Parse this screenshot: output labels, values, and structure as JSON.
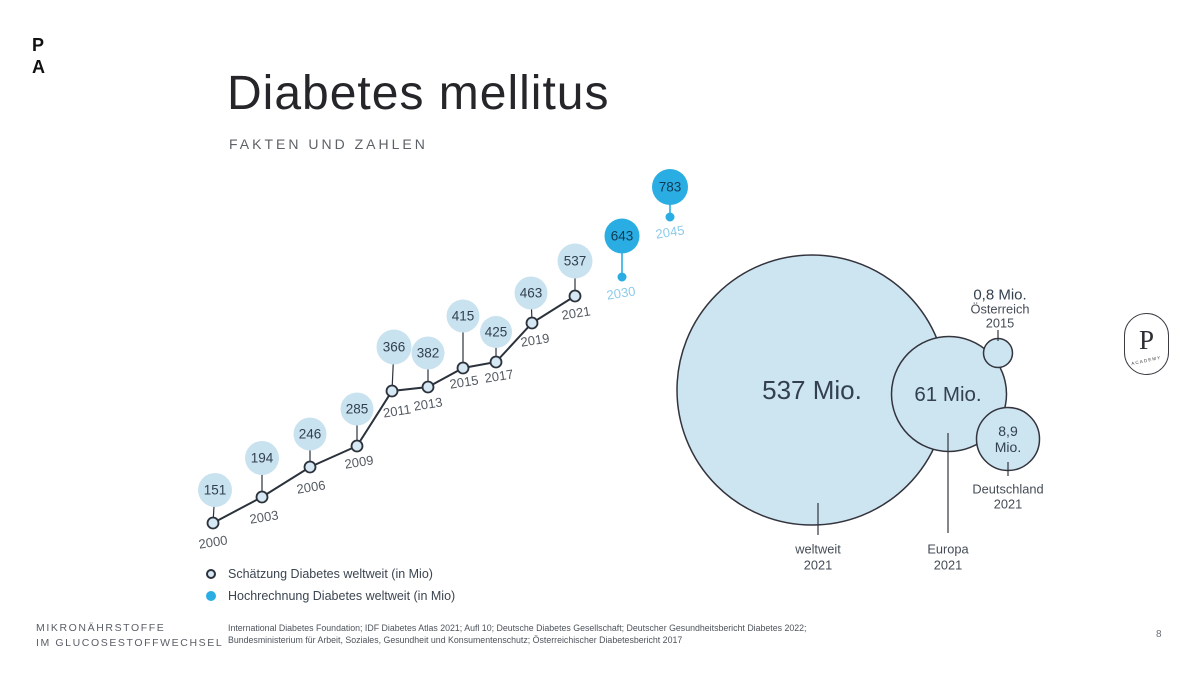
{
  "slide": {
    "logo_monogram": {
      "line1": "P",
      "line2": "A"
    },
    "title": "Diabetes mellitus",
    "subtitle": "FAKTEN UND ZAHLEN",
    "page_number": "8",
    "footer_left": {
      "line1": "MIKRONÄHRSTOFFE",
      "line2": "IM GLUCOSESTOFFWECHSEL"
    },
    "sources": {
      "line1": "International Diabetes Foundation; IDF Diabetes Atlas 2021; Aufl 10; Deutsche Diabetes Gesellschaft; Deutscher Gesundheitsbericht Diabetes 2022;",
      "line2": "Bundesministerium für Arbeit, Soziales, Gesundheit und Konsumentenschutz; Österreichischer Diabetesbericht 2017"
    },
    "badge": {
      "letter": "P",
      "subtext": "ACADEMY"
    }
  },
  "colors": {
    "accent_blue": "#29ade2",
    "bubble_light": "#c9e2ef",
    "large_circle_fill": "#cde5f1",
    "line_dark": "#2b323c",
    "circle_stroke": "#33343d",
    "number_dark": "#32404f",
    "number_navy": "#123a57",
    "year_gray": "#545a62",
    "year_light_blue": "#8dcbea",
    "label_gray": "#454c56"
  },
  "chart_data": [
    {
      "type": "line",
      "title": "",
      "xlabel": "",
      "ylabel": "",
      "series": [
        {
          "name": "Schätzung Diabetes weltweit (in Mio)",
          "x": [
            2000,
            2003,
            2006,
            2009,
            2011,
            2013,
            2015,
            2017,
            2019,
            2021
          ],
          "values": [
            151,
            194,
            246,
            285,
            366,
            382,
            415,
            425,
            463,
            537
          ]
        },
        {
          "name": "Hochrechnung Diabetes weltweit (in Mio)",
          "x": [
            2030,
            2045
          ],
          "values": [
            643,
            783
          ]
        }
      ],
      "legend_position": "bottom-left",
      "grid": false
    },
    {
      "type": "bubble",
      "title": "",
      "bubbles": [
        {
          "region": "weltweit",
          "year": "2021",
          "value_label": "537 Mio.",
          "value_mio": 537
        },
        {
          "region": "Europa",
          "year": "2021",
          "value_label": "61 Mio.",
          "value_mio": 61
        },
        {
          "region": "Österreich",
          "year": "2015",
          "value_label": "0,8 Mio.",
          "value_mio": 0.8
        },
        {
          "region": "Deutschland",
          "year": "2021",
          "value_label": "8,9 Mio.",
          "value_mio": 8.9
        }
      ]
    }
  ]
}
